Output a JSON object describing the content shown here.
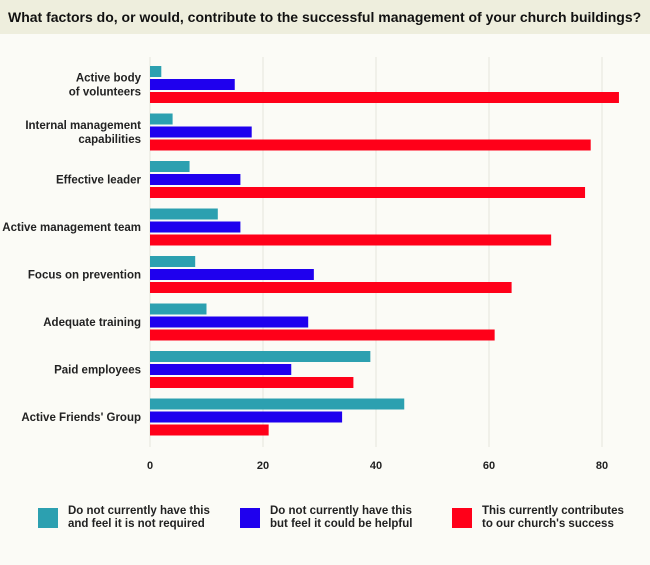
{
  "title": "What factors do, or would, contribute to the successful management of your church buildings?",
  "chart_data": {
    "type": "bar",
    "orientation": "horizontal",
    "categories": [
      "Active body\nof volunteers",
      "Internal management\ncapabilities",
      "Effective leader",
      "Active management team",
      "Focus on prevention",
      "Adequate training",
      "Paid employees",
      "Active Friends' Group"
    ],
    "series": [
      {
        "name": "Do not currently have this and feel it is not required",
        "color": "#2ca0b0",
        "values": [
          2,
          4,
          7,
          12,
          8,
          10,
          39,
          45
        ]
      },
      {
        "name": "Do not currently have this but feel it could be helpful",
        "color": "#1f00ee",
        "values": [
          15,
          18,
          16,
          16,
          29,
          28,
          25,
          34
        ]
      },
      {
        "name": "This currently contributes to our church's success",
        "color": "#ff0019",
        "values": [
          83,
          78,
          77,
          71,
          64,
          61,
          36,
          21
        ]
      }
    ],
    "xlim": [
      0,
      84
    ],
    "xticks": [
      "0",
      "20",
      "40",
      "60",
      "80"
    ],
    "grid": true,
    "legend": "bottom"
  },
  "legend": [
    {
      "line1": "Do not currently have this",
      "line2": "and feel it is not required"
    },
    {
      "line1": "Do not currently have this",
      "line2": "but feel it could be helpful"
    },
    {
      "line1": "This currently contributes",
      "line2": "to our church's success"
    }
  ]
}
